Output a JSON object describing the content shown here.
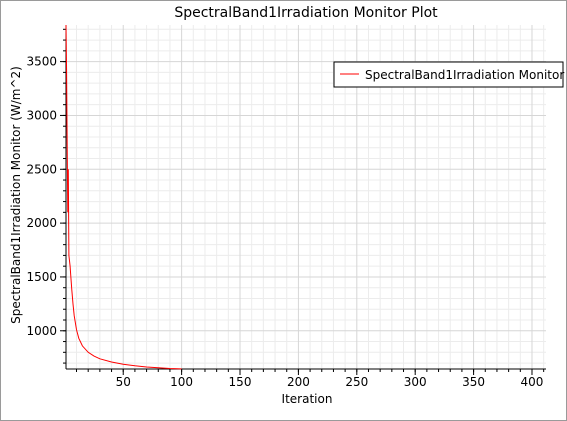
{
  "chart_data": {
    "type": "line",
    "title": "SpectralBand1Irradiation Monitor Plot",
    "xlabel": "Iteration",
    "ylabel": "SpectralBand1Irradiation Monitor (W/m^2)",
    "xlim": [
      1,
      412
    ],
    "ylim": [
      645,
      3840
    ],
    "x_ticks": [
      50,
      100,
      150,
      200,
      250,
      300,
      350,
      400
    ],
    "y_ticks": [
      1000,
      1500,
      2000,
      2500,
      3000,
      3500
    ],
    "grid": true,
    "legend_position": "top-right",
    "series": [
      {
        "name": "SpectralBand1Irradiation Monitor",
        "color": "#ff0000",
        "x": [
          1,
          1.5,
          2,
          2.5,
          3,
          3.5,
          4,
          4.5,
          5,
          6,
          7,
          8,
          10,
          12,
          15,
          20,
          25,
          30,
          40,
          50,
          60,
          70,
          80,
          90,
          100
        ],
        "y": [
          3840,
          3400,
          2700,
          2100,
          2500,
          1700,
          1650,
          1600,
          1520,
          1380,
          1250,
          1140,
          1010,
          930,
          860,
          800,
          765,
          740,
          710,
          690,
          675,
          664,
          656,
          650,
          646
        ]
      }
    ]
  }
}
